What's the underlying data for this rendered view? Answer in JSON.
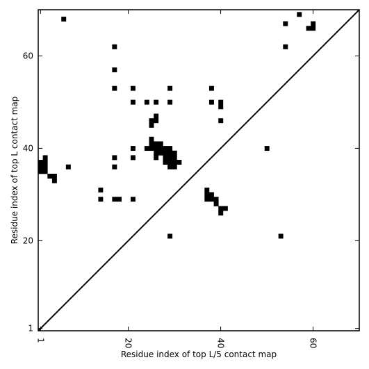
{
  "chart_data": {
    "type": "heatmap",
    "title": "",
    "xlabel": "Residue index of top L/5 contact map",
    "ylabel": "Residue index of top L contact map",
    "xlim": [
      0.5,
      70
    ],
    "ylim": [
      0.5,
      70
    ],
    "xticks": [
      1,
      20,
      40,
      60
    ],
    "yticks": [
      1,
      20,
      40,
      60
    ],
    "xtick_rotation": -90,
    "grid": false,
    "diagonal": true,
    "cell_color": "#000000",
    "background_color": "#ffffff",
    "cells": [
      [
        6,
        68
      ],
      [
        17,
        62
      ],
      [
        17,
        57
      ],
      [
        17,
        53
      ],
      [
        17,
        38
      ],
      [
        17,
        36
      ],
      [
        21,
        53
      ],
      [
        21,
        50
      ],
      [
        21,
        40
      ],
      [
        21,
        38
      ],
      [
        21,
        29
      ],
      [
        24,
        50
      ],
      [
        26,
        50
      ],
      [
        29,
        53
      ],
      [
        29,
        50
      ],
      [
        26,
        47
      ],
      [
        25,
        46
      ],
      [
        26,
        46
      ],
      [
        25,
        45
      ],
      [
        25,
        42
      ],
      [
        24,
        40
      ],
      [
        25,
        40
      ],
      [
        25,
        41
      ],
      [
        26,
        41
      ],
      [
        27,
        41
      ],
      [
        26,
        40
      ],
      [
        27,
        40
      ],
      [
        28,
        40
      ],
      [
        29,
        40
      ],
      [
        26,
        39
      ],
      [
        27,
        39
      ],
      [
        28,
        39
      ],
      [
        29,
        39
      ],
      [
        30,
        39
      ],
      [
        26,
        38
      ],
      [
        28,
        38
      ],
      [
        29,
        38
      ],
      [
        30,
        38
      ],
      [
        28,
        37
      ],
      [
        29,
        37
      ],
      [
        30,
        37
      ],
      [
        31,
        37
      ],
      [
        29,
        36
      ],
      [
        30,
        36
      ],
      [
        1,
        37
      ],
      [
        2,
        37
      ],
      [
        1,
        36
      ],
      [
        2,
        36
      ],
      [
        1,
        35
      ],
      [
        2,
        35
      ],
      [
        2,
        38
      ],
      [
        3,
        34
      ],
      [
        4,
        34
      ],
      [
        4,
        33
      ],
      [
        7,
        36
      ],
      [
        14,
        31
      ],
      [
        14,
        29
      ],
      [
        17,
        29
      ],
      [
        18,
        29
      ],
      [
        29,
        21
      ],
      [
        53,
        21
      ],
      [
        37,
        31
      ],
      [
        37,
        30
      ],
      [
        38,
        30
      ],
      [
        37,
        29
      ],
      [
        38,
        29
      ],
      [
        39,
        29
      ],
      [
        39,
        28
      ],
      [
        40,
        27
      ],
      [
        41,
        27
      ],
      [
        40,
        26
      ],
      [
        38,
        53
      ],
      [
        38,
        50
      ],
      [
        40,
        50
      ],
      [
        40,
        49
      ],
      [
        40,
        46
      ],
      [
        50,
        40
      ],
      [
        54,
        67
      ],
      [
        54,
        62
      ],
      [
        57,
        69
      ],
      [
        59,
        66
      ],
      [
        60,
        66
      ],
      [
        60,
        67
      ]
    ]
  }
}
